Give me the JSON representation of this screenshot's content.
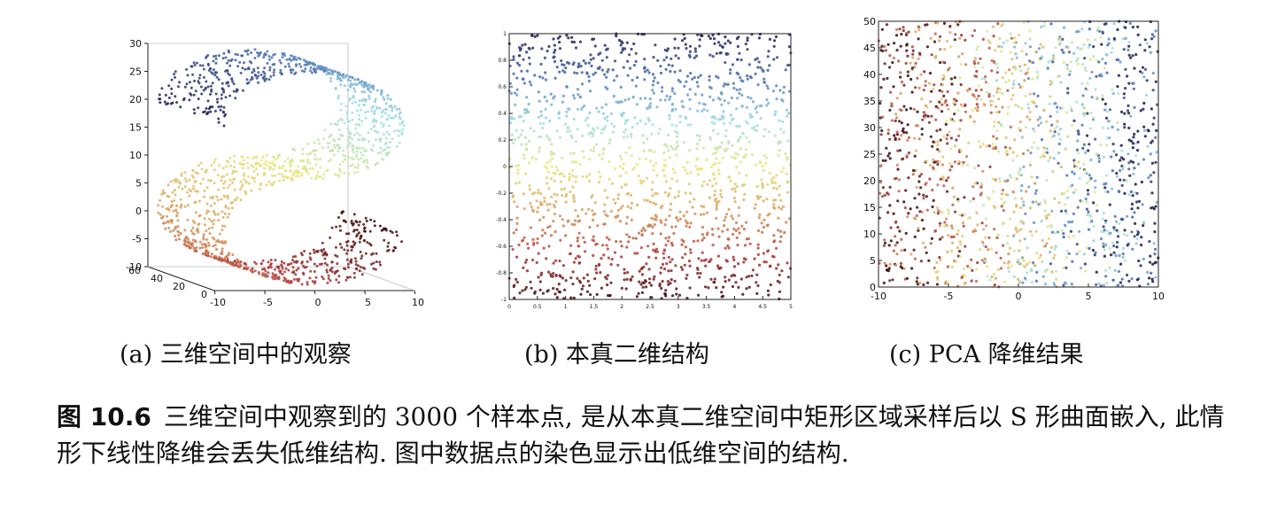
{
  "figure": {
    "number": "图 10.6",
    "caption": "三维空间中观察到的 3000 个样本点, 是从本真二维空间中矩形区域采样后以 S 形曲面嵌入, 此情形下线性降维会丢失低维结构. 图中数据点的染色显示出低维空间的结构."
  },
  "subfigures": {
    "a": {
      "label": "(a) 三维空间中的观察"
    },
    "b": {
      "label": "(b) 本真二维结构"
    },
    "c": {
      "label": "(c) PCA 降维结果"
    }
  },
  "chart_data": [
    {
      "id": "a",
      "type": "scatter",
      "projection": "3d",
      "shape": "S-curve",
      "n_points": 3000,
      "x_ticks": [
        "-10",
        "-5",
        "0",
        "5",
        "10"
      ],
      "y_ticks": [
        "0",
        "20",
        "40",
        "60"
      ],
      "z_ticks": [
        "-10",
        "-5",
        "0",
        "5",
        "10",
        "15",
        "20",
        "25",
        "30"
      ],
      "xlim": [
        -10,
        10
      ],
      "ylim": [
        0,
        60
      ],
      "zlim": [
        -10,
        30
      ],
      "colormap": [
        "#3a0b0b",
        "#b03a3a",
        "#d8a060",
        "#e8e87a",
        "#9fe0e8",
        "#4a6fb0",
        "#1a1a4a"
      ]
    },
    {
      "id": "b",
      "type": "scatter",
      "n_points": 3000,
      "x_ticks": [
        "0",
        "0.5",
        "1",
        "1.5",
        "2",
        "2.5",
        "3",
        "3.5",
        "4",
        "4.5",
        "5"
      ],
      "y_ticks": [
        "-1",
        "-0.8",
        "-0.6",
        "-0.4",
        "-0.2",
        "0",
        "0.2",
        "0.4",
        "0.6",
        "0.8",
        "1"
      ],
      "xlim": [
        0,
        5
      ],
      "ylim": [
        -1,
        1
      ],
      "colormap": [
        "#3a0b0b",
        "#b03a3a",
        "#d8a060",
        "#e8e87a",
        "#9fe0e8",
        "#4a6fb0",
        "#1a1a4a"
      ]
    },
    {
      "id": "c",
      "type": "scatter",
      "n_points": 3000,
      "x_ticks": [
        "-10",
        "-5",
        "0",
        "5",
        "10"
      ],
      "y_ticks": [
        "0",
        "5",
        "10",
        "15",
        "20",
        "25",
        "30",
        "35",
        "40",
        "45",
        "50"
      ],
      "xlim": [
        -10,
        10
      ],
      "ylim": [
        0,
        50
      ],
      "colormap": [
        "#3a0b0b",
        "#b03a3a",
        "#d8a060",
        "#e8e87a",
        "#9fe0e8",
        "#4a6fb0",
        "#1a1a4a"
      ]
    }
  ]
}
